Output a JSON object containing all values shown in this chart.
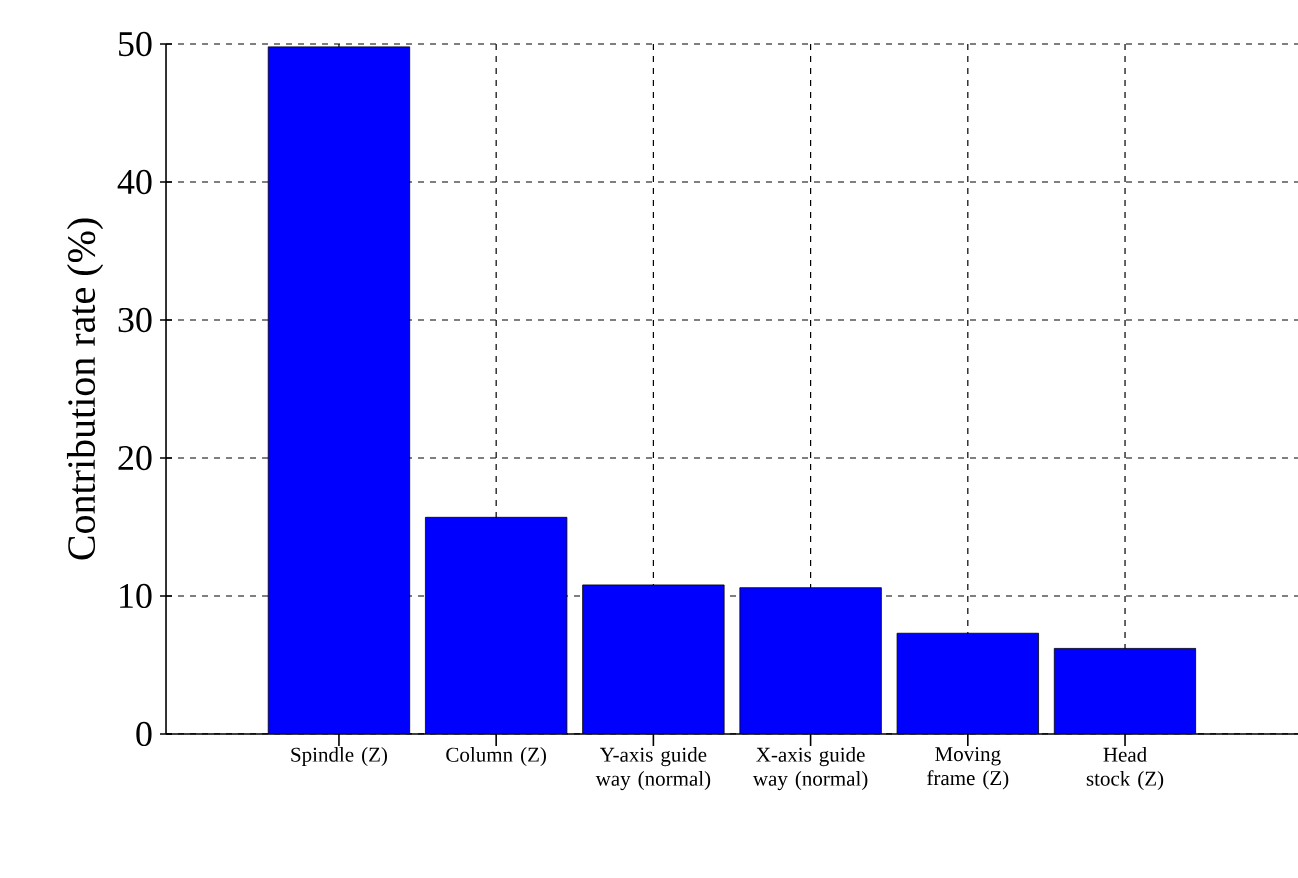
{
  "chart_data": {
    "type": "bar",
    "ylabel": "Contribution rate (%)",
    "categories": [
      "Spindle (Z)",
      "Column (Z)",
      "Y-axis guide way (normal)",
      "X-axis guide way (normal)",
      "Moving frame (Z)",
      "Head stock (Z)"
    ],
    "values": [
      49.8,
      15.7,
      10.8,
      10.6,
      7.3,
      6.2
    ],
    "color": "#0000ff",
    "ylim": [
      0,
      50
    ],
    "yticks": [
      0,
      10,
      20,
      30,
      40,
      50
    ],
    "grid": true
  }
}
